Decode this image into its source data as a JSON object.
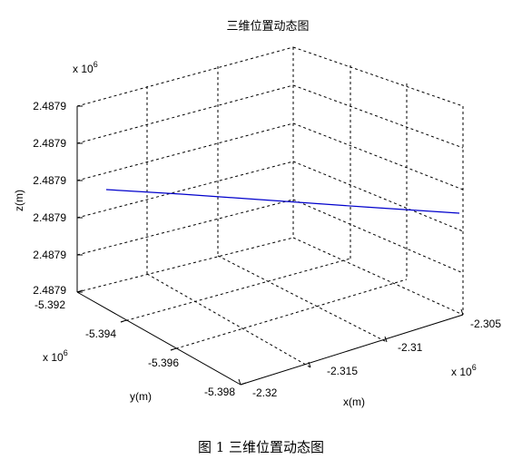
{
  "caption": "图 1  三维位置动态图",
  "chart_data": {
    "type": "line",
    "title": "三维位置动态图",
    "xlabel": "x(m)",
    "ylabel": "y(m)",
    "zlabel": "z(m)",
    "x_exponent": "x 10",
    "x_exponent_power": "6",
    "y_exponent": "x 10",
    "y_exponent_power": "6",
    "z_exponent": "x 10",
    "z_exponent_power": "6",
    "x_ticks": [
      "-2.32",
      "-2.315",
      "-2.31",
      "-2.305"
    ],
    "y_ticks": [
      "-5.392",
      "-5.394",
      "-5.396",
      "-5.398"
    ],
    "z_ticks": [
      "2.4879",
      "2.4879",
      "2.4879",
      "2.4879",
      "2.4879",
      "2.4879"
    ],
    "grid": true,
    "series": [
      {
        "color": "#0000cc"
      }
    ]
  }
}
